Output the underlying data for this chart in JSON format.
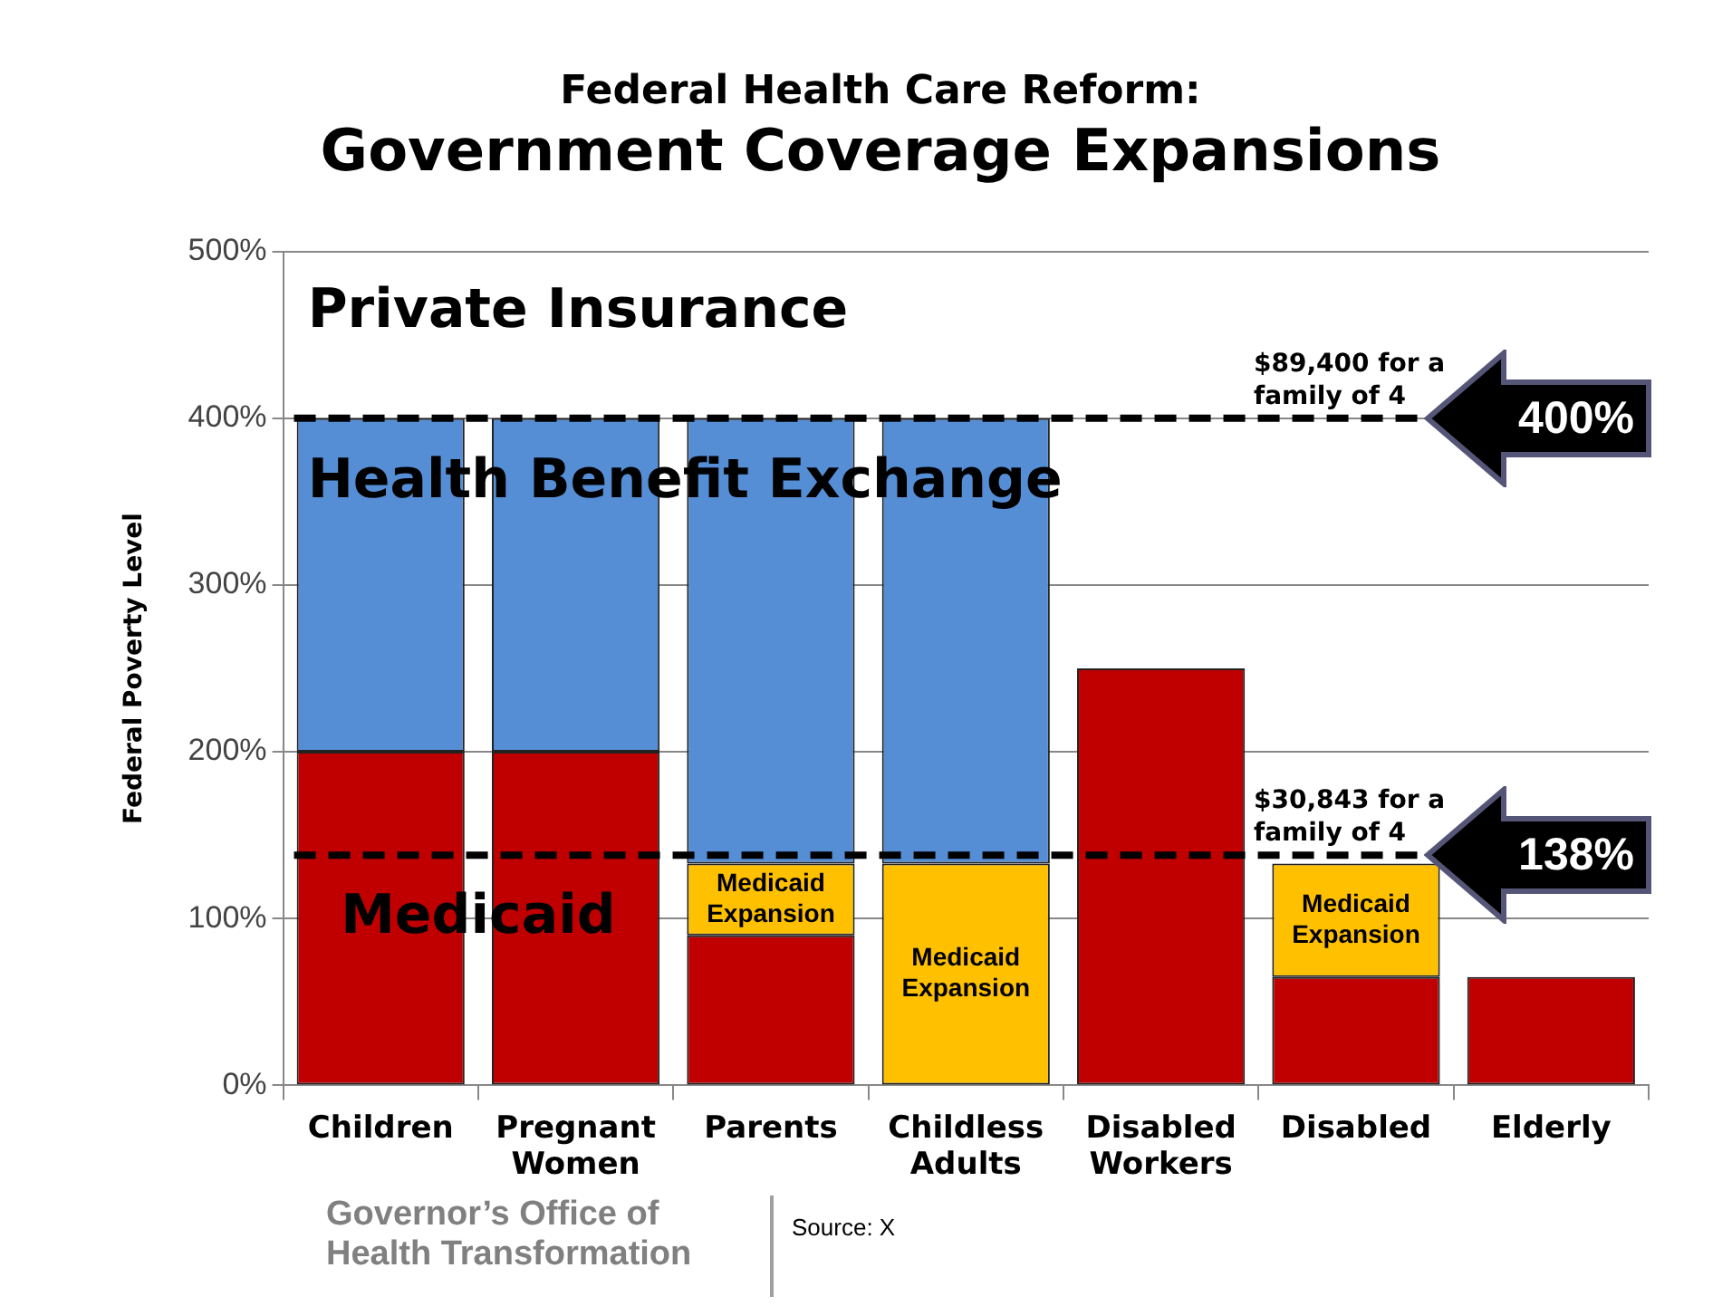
{
  "chart_data": {
    "type": "bar",
    "title": "Federal Health Care Reform:",
    "subtitle": "Government Coverage Expansions",
    "ylabel": "Federal Poverty Level",
    "categories": [
      "Children",
      "Pregnant Women",
      "Parents",
      "Childless Adults",
      "Disabled Workers",
      "Disabled",
      "Elderly"
    ],
    "series": [
      {
        "name": "Medicaid",
        "color": "#c00000",
        "values": [
          200,
          200,
          90,
          null,
          250,
          65,
          65
        ]
      },
      {
        "name": "Medicaid Expansion",
        "color": "#ffc000",
        "values": [
          null,
          null,
          43,
          133,
          null,
          68,
          null
        ]
      },
      {
        "name": "Health Benefit Exchange",
        "color": "#558ed5",
        "values": [
          200,
          200,
          267,
          267,
          null,
          null,
          null
        ]
      }
    ],
    "stacked": true,
    "ylim": [
      0,
      500
    ],
    "yticks": [
      {
        "value": 0,
        "label": "0%"
      },
      {
        "value": 100,
        "label": "100%"
      },
      {
        "value": 200,
        "label": "200%"
      },
      {
        "value": 300,
        "label": "300%"
      },
      {
        "value": 400,
        "label": "400%"
      },
      {
        "value": 500,
        "label": "500%"
      }
    ],
    "grid": "y",
    "legend": false,
    "ref_lines": [
      {
        "axis": "y",
        "value": 400,
        "label": "$89,400 for a family of 4",
        "color": "#000000",
        "line_style": "dashed"
      },
      {
        "axis": "y",
        "value": 138,
        "label": "$30,843 for a family of 4",
        "color": "#000000",
        "line_style": "dashed"
      }
    ],
    "annotations": [
      "Private Insurance",
      "400%",
      "138%",
      "Governor’s Office of Health Transformation",
      "Source: X"
    ]
  }
}
